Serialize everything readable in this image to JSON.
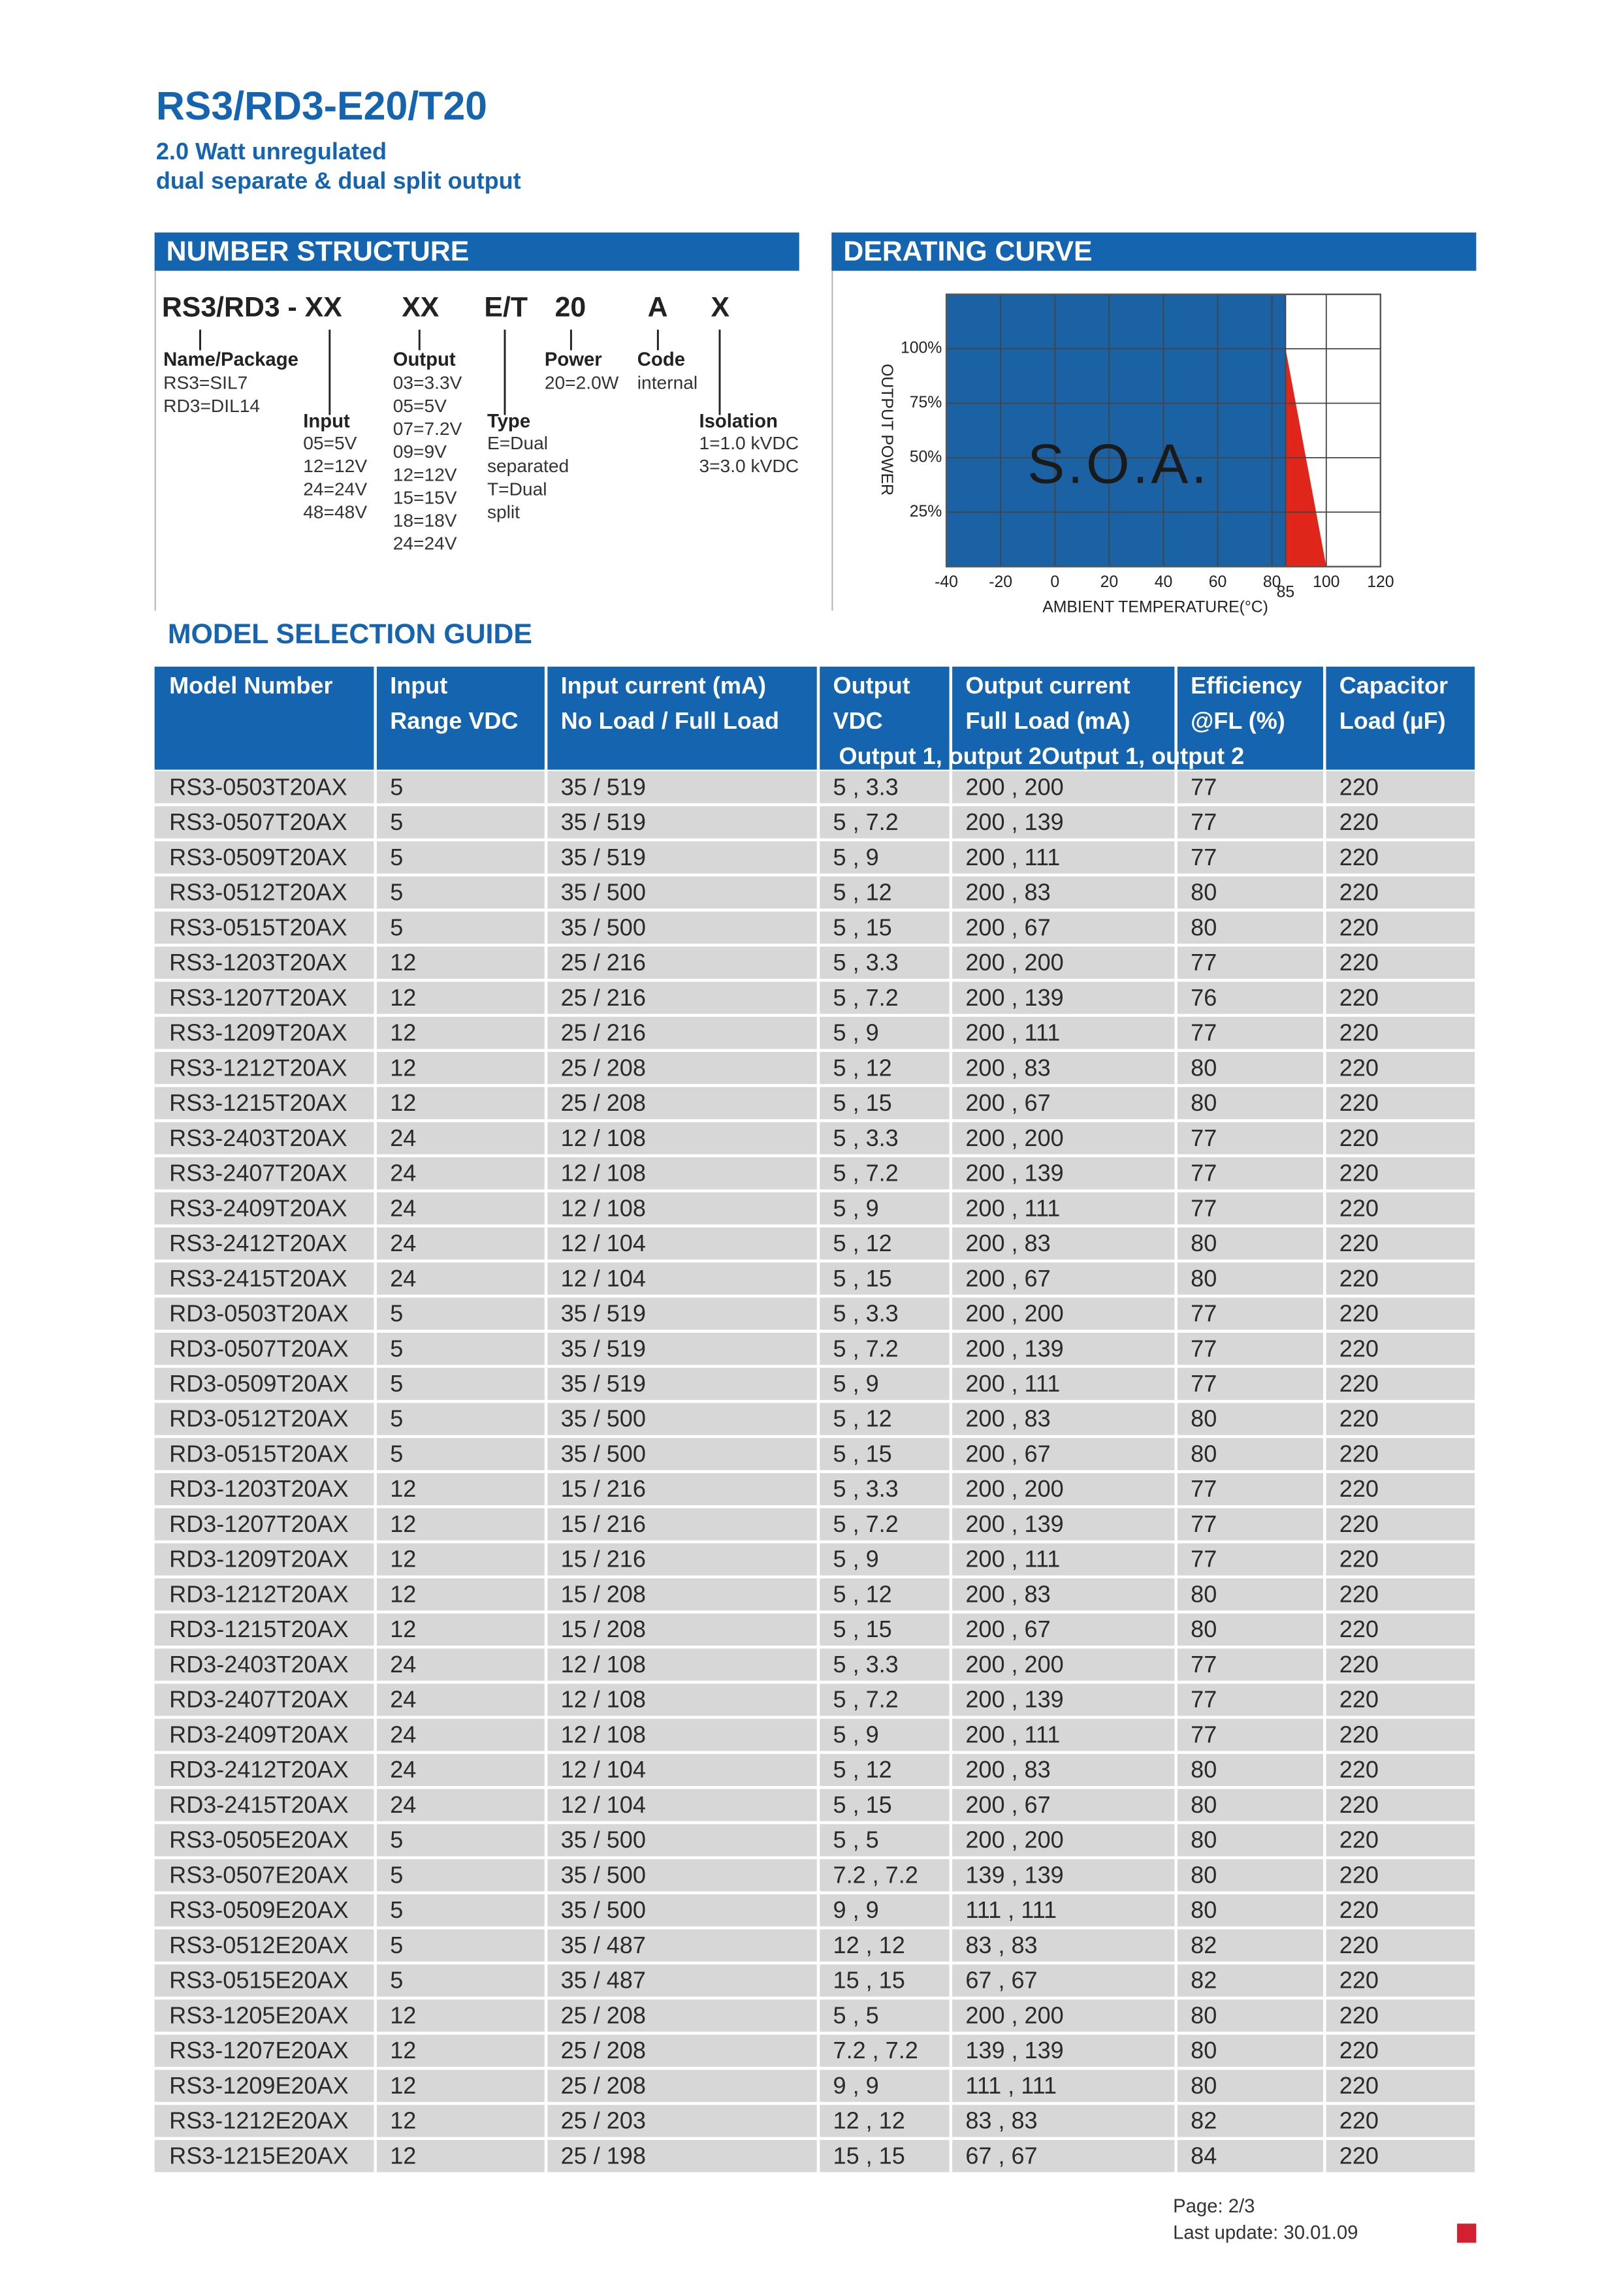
{
  "header": {
    "title": "RS3/RD3-E20/T20",
    "subtitle": [
      "2.0 Watt unregulated",
      "dual separate & dual split output"
    ]
  },
  "number_structure": {
    "heading": "NUMBER STRUCTURE",
    "code": [
      "RS3/RD3 - XX",
      "XX",
      "E/T",
      "20",
      "A",
      "X"
    ],
    "fields": [
      {
        "label": "Name/Package",
        "lines": [
          "RS3=SIL7",
          "RD3=DIL14"
        ]
      },
      {
        "label": "Input",
        "lines": [
          "05=5V",
          "12=12V",
          "24=24V",
          "48=48V"
        ]
      },
      {
        "label": "Output",
        "lines": [
          "03=3.3V",
          "05=5V",
          "07=7.2V",
          "09=9V",
          "12=12V",
          "15=15V",
          "18=18V",
          "24=24V"
        ]
      },
      {
        "label": "Type",
        "lines": [
          "E=Dual",
          "separated",
          "T=Dual",
          "split"
        ]
      },
      {
        "label": "Power",
        "lines": [
          "20=2.0W"
        ]
      },
      {
        "label": "Code",
        "lines": [
          "internal"
        ]
      },
      {
        "label": "Isolation",
        "lines": [
          "1=1.0 kVDC",
          "3=3.0 kVDC"
        ]
      }
    ]
  },
  "chart_data": {
    "type": "area",
    "title": "DERATING CURVE",
    "x_label": "AMBIENT TEMPERATURE(°C)",
    "y_label": "OUTPUT POWER",
    "annotation": "S.O.A.",
    "x": [
      -40,
      85,
      100
    ],
    "values": [
      100,
      100,
      0
    ],
    "color": "#e0261a",
    "soa_color": "#1b62a5",
    "xlim": [
      -40,
      120
    ],
    "ylim": [
      0,
      125
    ],
    "xticks": [
      -40,
      -20,
      0,
      20,
      40,
      60,
      80,
      85,
      100,
      120
    ],
    "yticks": [
      {
        "value": 25,
        "label": "25%"
      },
      {
        "value": 50,
        "label": "50%"
      },
      {
        "value": 75,
        "label": "75%"
      },
      {
        "value": 100,
        "label": "100%"
      }
    ],
    "grid": true
  },
  "table": {
    "heading": "MODEL SELECTION GUIDE",
    "header": [
      [
        "Model Number"
      ],
      [
        "Input",
        "Range VDC"
      ],
      [
        "Input current (mA)",
        "No Load / Full Load"
      ],
      [
        "Output",
        "VDC"
      ],
      [
        "Output current",
        "Full Load (mA)"
      ],
      [
        "Efficiency",
        "@FL (%)"
      ],
      [
        "Capacitor",
        "Load (µF)"
      ]
    ],
    "header_note": "Output 1, output 2Output 1, output 2",
    "rows": [
      [
        "RS3-0503T20AX",
        "5",
        "35 / 519",
        "5 , 3.3",
        "200 , 200",
        "77",
        "220"
      ],
      [
        "RS3-0507T20AX",
        "5",
        "35 / 519",
        "5 , 7.2",
        "200 , 139",
        "77",
        "220"
      ],
      [
        "RS3-0509T20AX",
        "5",
        "35 / 519",
        "5 , 9",
        "200 , 111",
        "77",
        "220"
      ],
      [
        "RS3-0512T20AX",
        "5",
        "35 / 500",
        "5 , 12",
        "200 , 83",
        "80",
        "220"
      ],
      [
        "RS3-0515T20AX",
        "5",
        "35 / 500",
        "5 , 15",
        "200 , 67",
        "80",
        "220"
      ],
      [
        "RS3-1203T20AX",
        "12",
        "25 / 216",
        "5 , 3.3",
        "200 , 200",
        "77",
        "220"
      ],
      [
        "RS3-1207T20AX",
        "12",
        "25 / 216",
        "5 , 7.2",
        "200 , 139",
        "76",
        "220"
      ],
      [
        "RS3-1209T20AX",
        "12",
        "25 / 216",
        "5 , 9",
        "200 , 111",
        "77",
        "220"
      ],
      [
        "RS3-1212T20AX",
        "12",
        "25 / 208",
        "5 , 12",
        "200 , 83",
        "80",
        "220"
      ],
      [
        "RS3-1215T20AX",
        "12",
        "25 / 208",
        "5 , 15",
        "200 , 67",
        "80",
        "220"
      ],
      [
        "RS3-2403T20AX",
        "24",
        "12 / 108",
        "5 , 3.3",
        "200 , 200",
        "77",
        "220"
      ],
      [
        "RS3-2407T20AX",
        "24",
        "12 / 108",
        "5 , 7.2",
        "200 , 139",
        "77",
        "220"
      ],
      [
        "RS3-2409T20AX",
        "24",
        "12 / 108",
        "5 , 9",
        "200 , 111",
        "77",
        "220"
      ],
      [
        "RS3-2412T20AX",
        "24",
        "12 / 104",
        "5 , 12",
        "200 , 83",
        "80",
        "220"
      ],
      [
        "RS3-2415T20AX",
        "24",
        "12 / 104",
        "5 , 15",
        "200 , 67",
        "80",
        "220"
      ],
      [
        "RD3-0503T20AX",
        "5",
        "35 / 519",
        "5 , 3.3",
        "200 , 200",
        "77",
        "220"
      ],
      [
        "RD3-0507T20AX",
        "5",
        "35 / 519",
        "5 , 7.2",
        "200 , 139",
        "77",
        "220"
      ],
      [
        "RD3-0509T20AX",
        "5",
        "35 / 519",
        "5 , 9",
        "200 , 111",
        "77",
        "220"
      ],
      [
        "RD3-0512T20AX",
        "5",
        "35 / 500",
        "5 , 12",
        "200 , 83",
        "80",
        "220"
      ],
      [
        "RD3-0515T20AX",
        "5",
        "35 / 500",
        "5 , 15",
        "200 , 67",
        "80",
        "220"
      ],
      [
        "RD3-1203T20AX",
        "12",
        "15 / 216",
        "5 , 3.3",
        "200 , 200",
        "77",
        "220"
      ],
      [
        "RD3-1207T20AX",
        "12",
        "15 / 216",
        "5 , 7.2",
        "200 , 139",
        "77",
        "220"
      ],
      [
        "RD3-1209T20AX",
        "12",
        "15 / 216",
        "5 , 9",
        "200 , 111",
        "77",
        "220"
      ],
      [
        "RD3-1212T20AX",
        "12",
        "15 / 208",
        "5 , 12",
        "200 , 83",
        "80",
        "220"
      ],
      [
        "RD3-1215T20AX",
        "12",
        "15 / 208",
        "5 , 15",
        "200 , 67",
        "80",
        "220"
      ],
      [
        "RD3-2403T20AX",
        "24",
        "12 / 108",
        "5 , 3.3",
        "200 , 200",
        "77",
        "220"
      ],
      [
        "RD3-2407T20AX",
        "24",
        "12 / 108",
        "5 , 7.2",
        "200 , 139",
        "77",
        "220"
      ],
      [
        "RD3-2409T20AX",
        "24",
        "12 / 108",
        "5 , 9",
        "200 , 111",
        "77",
        "220"
      ],
      [
        "RD3-2412T20AX",
        "24",
        "12 / 104",
        "5 , 12",
        "200 , 83",
        "80",
        "220"
      ],
      [
        "RD3-2415T20AX",
        "24",
        "12 / 104",
        "5 , 15",
        "200 , 67",
        "80",
        "220"
      ],
      [
        "RS3-0505E20AX",
        "5",
        "35 / 500",
        "5 , 5",
        "200 , 200",
        "80",
        "220"
      ],
      [
        "RS3-0507E20AX",
        "5",
        "35 / 500",
        "7.2 , 7.2",
        "139 , 139",
        "80",
        "220"
      ],
      [
        "RS3-0509E20AX",
        "5",
        "35 / 500",
        "9 , 9",
        "111 , 111",
        "80",
        "220"
      ],
      [
        "RS3-0512E20AX",
        "5",
        "35 / 487",
        "12 , 12",
        "83 , 83",
        "82",
        "220"
      ],
      [
        "RS3-0515E20AX",
        "5",
        "35 / 487",
        "15 , 15",
        "67 , 67",
        "82",
        "220"
      ],
      [
        "RS3-1205E20AX",
        "12",
        "25 / 208",
        "5 , 5",
        "200 , 200",
        "80",
        "220"
      ],
      [
        "RS3-1207E20AX",
        "12",
        "25 / 208",
        "7.2 , 7.2",
        "139 , 139",
        "80",
        "220"
      ],
      [
        "RS3-1209E20AX",
        "12",
        "25 / 208",
        "9 , 9",
        "111 , 111",
        "80",
        "220"
      ],
      [
        "RS3-1212E20AX",
        "12",
        "25 / 203",
        "12 , 12",
        "83 , 83",
        "82",
        "220"
      ],
      [
        "RS3-1215E20AX",
        "12",
        "25 / 198",
        "15 , 15",
        "67 , 67",
        "84",
        "220"
      ]
    ]
  },
  "footer": {
    "page": "Page: 2/3",
    "update": "Last update: 30.01.09"
  }
}
